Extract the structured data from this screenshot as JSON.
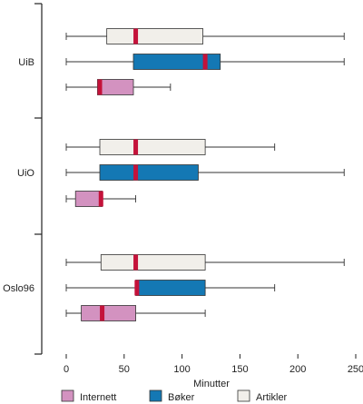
{
  "chart_data": {
    "type": "boxplot",
    "title": "",
    "xlabel": "Minutter",
    "ylabel": "",
    "xlim": [
      -20,
      250
    ],
    "xticks": [
      0,
      50,
      100,
      150,
      200,
      250
    ],
    "orientation": "horizontal",
    "grid": false,
    "legend_position": "bottom",
    "series": [
      {
        "name": "Artikler",
        "color": "#f1efea"
      },
      {
        "name": "Bøker",
        "color": "#1478b4"
      },
      {
        "name": "Internett",
        "color": "#d392c0"
      }
    ],
    "median_color": "#c4123a",
    "groups": [
      {
        "label": "UiB",
        "boxes": [
          {
            "series": "Artikler",
            "min": 0,
            "q1": 35,
            "median": 60,
            "q3": 118,
            "max": 240
          },
          {
            "series": "Bøker",
            "min": 0,
            "q1": 58,
            "median": 120,
            "q3": 133,
            "max": 240
          },
          {
            "series": "Internett",
            "min": 0,
            "q1": 27,
            "median": 29,
            "q3": 58,
            "max": 90
          }
        ]
      },
      {
        "label": "UiO",
        "boxes": [
          {
            "series": "Artikler",
            "min": 0,
            "q1": 29,
            "median": 60,
            "q3": 120,
            "max": 180
          },
          {
            "series": "Bøker",
            "min": 0,
            "q1": 29,
            "median": 60,
            "q3": 114,
            "max": 240
          },
          {
            "series": "Internett",
            "min": 0,
            "q1": 8,
            "median": 30,
            "q3": 31,
            "max": 60
          }
        ]
      },
      {
        "label": "Oslo96",
        "boxes": [
          {
            "series": "Artikler",
            "min": 0,
            "q1": 30,
            "median": 60,
            "q3": 120,
            "max": 240
          },
          {
            "series": "Bøker",
            "min": 0,
            "q1": 60,
            "median": 61,
            "q3": 120,
            "max": 180
          },
          {
            "series": "Internett",
            "min": 0,
            "q1": 13,
            "median": 31,
            "q3": 60,
            "max": 120
          }
        ]
      }
    ],
    "legend": [
      "Internett",
      "Bøker",
      "Artikler"
    ]
  }
}
